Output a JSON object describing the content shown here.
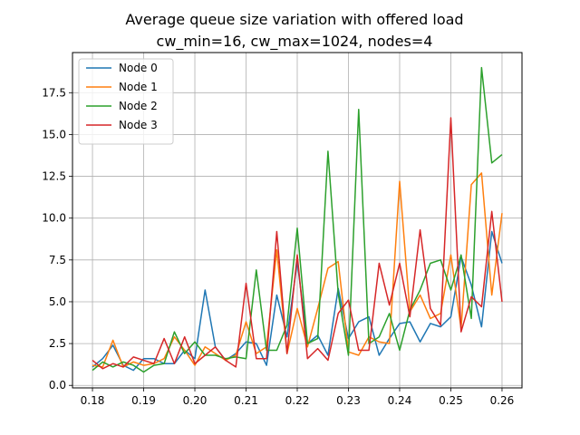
{
  "chart_data": {
    "type": "line",
    "title": "Average queue size variation with offered load",
    "subtitle": "cw_min=16, cw_max=1024, nodes=4",
    "xlabel": "",
    "ylabel": "",
    "xlim": [
      0.1761,
      0.2639
    ],
    "ylim": [
      -0.15,
      19.9
    ],
    "xticks": [
      0.18,
      0.19,
      0.2,
      0.21,
      0.22,
      0.23,
      0.24,
      0.25,
      0.26
    ],
    "xtick_labels": [
      "0.18",
      "0.19",
      "0.20",
      "0.21",
      "0.22",
      "0.23",
      "0.24",
      "0.25",
      "0.26"
    ],
    "yticks": [
      0.0,
      2.5,
      5.0,
      7.5,
      10.0,
      12.5,
      15.0,
      17.5
    ],
    "ytick_labels": [
      "0.0",
      "2.5",
      "5.0",
      "7.5",
      "10.0",
      "12.5",
      "15.0",
      "17.5"
    ],
    "grid": true,
    "legend_position": "top-left",
    "x": [
      0.18,
      0.182,
      0.184,
      0.186,
      0.188,
      0.19,
      0.192,
      0.194,
      0.196,
      0.198,
      0.2,
      0.202,
      0.204,
      0.206,
      0.208,
      0.21,
      0.212,
      0.214,
      0.216,
      0.218,
      0.22,
      0.222,
      0.224,
      0.226,
      0.228,
      0.23,
      0.232,
      0.234,
      0.236,
      0.238,
      0.24,
      0.242,
      0.244,
      0.246,
      0.248,
      0.25,
      0.252,
      0.254,
      0.256,
      0.258,
      0.26
    ],
    "series": [
      {
        "name": "Node 0",
        "color": "#1f77b4",
        "values": [
          1.1,
          1.6,
          2.4,
          1.2,
          0.9,
          1.6,
          1.6,
          1.3,
          1.3,
          2.1,
          1.6,
          5.7,
          2.3,
          1.5,
          1.9,
          2.6,
          2.5,
          1.2,
          5.4,
          2.9,
          7.4,
          2.5,
          3.0,
          1.8,
          5.8,
          2.8,
          3.8,
          4.1,
          1.8,
          2.8,
          3.7,
          3.8,
          2.6,
          3.7,
          3.5,
          4.1,
          7.7,
          6.0,
          3.5,
          9.2,
          7.3
        ]
      },
      {
        "name": "Node 1",
        "color": "#ff7f0e",
        "values": [
          1.2,
          1.1,
          2.7,
          1.1,
          1.4,
          1.2,
          1.3,
          1.6,
          2.9,
          2.1,
          1.2,
          2.3,
          1.9,
          1.5,
          1.8,
          3.8,
          1.9,
          2.3,
          8.1,
          1.9,
          4.6,
          2.3,
          4.6,
          7.0,
          7.4,
          2.0,
          1.8,
          2.9,
          2.6,
          2.5,
          12.2,
          4.4,
          5.4,
          4.0,
          4.3,
          7.8,
          3.4,
          12.0,
          12.7,
          5.4,
          10.3
        ]
      },
      {
        "name": "Node 2",
        "color": "#2ca02c",
        "values": [
          0.9,
          1.4,
          1.1,
          1.4,
          1.2,
          0.8,
          1.2,
          1.3,
          3.2,
          1.9,
          2.6,
          1.8,
          1.8,
          1.6,
          1.7,
          1.6,
          6.9,
          2.1,
          2.1,
          3.6,
          9.4,
          2.5,
          2.8,
          14.0,
          5.5,
          1.8,
          16.5,
          2.5,
          2.9,
          4.3,
          2.1,
          4.5,
          5.7,
          7.3,
          7.5,
          5.7,
          7.8,
          4.0,
          19.0,
          13.3,
          13.8
        ]
      },
      {
        "name": "Node 3",
        "color": "#d62728",
        "values": [
          1.5,
          1.0,
          1.3,
          1.1,
          1.7,
          1.5,
          1.3,
          2.8,
          1.3,
          2.9,
          1.3,
          1.8,
          2.3,
          1.5,
          1.1,
          6.1,
          1.6,
          1.6,
          9.2,
          1.9,
          7.8,
          1.6,
          2.2,
          1.5,
          4.3,
          5.1,
          2.1,
          2.1,
          7.3,
          4.8,
          7.3,
          4.1,
          9.3,
          4.6,
          3.6,
          16.0,
          3.2,
          5.3,
          4.7,
          10.4,
          5.0
        ]
      }
    ]
  }
}
